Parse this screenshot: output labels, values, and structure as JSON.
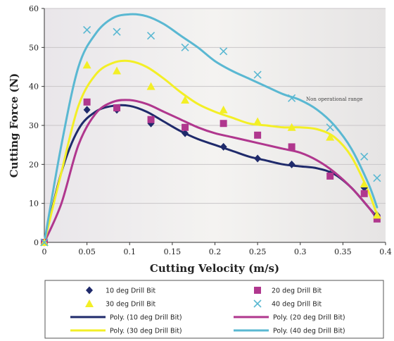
{
  "chart_data": {
    "type": "scatter",
    "title": "",
    "xlabel": "Cutting Velocity (m/s)",
    "ylabel": "Cutting Force (N)",
    "xlim": [
      0,
      0.4
    ],
    "ylim": [
      0,
      60
    ],
    "xticks": [
      "0",
      "0.05",
      "0.1",
      "0.15",
      "0.2",
      "0.25",
      "0.3",
      "0.35",
      "0.4"
    ],
    "yticks": [
      "0",
      "10",
      "20",
      "30",
      "40",
      "50",
      "60"
    ],
    "grid": true,
    "annotation": {
      "text": "Non operational range",
      "x": 0.34,
      "y": 36.3
    },
    "legend_position": "bottom",
    "series": [
      {
        "name": "10 deg Drill Bit",
        "marker": "diamond",
        "color": "#1f2a6b",
        "x": [
          0,
          0.05,
          0.085,
          0.125,
          0.165,
          0.21,
          0.25,
          0.29,
          0.335,
          0.375,
          0.39
        ],
        "y": [
          0,
          34,
          34,
          30.5,
          28,
          24.5,
          21.5,
          20,
          17.5,
          14,
          7
        ]
      },
      {
        "name": "20 deg Drill Bit",
        "marker": "square",
        "color": "#b0378e",
        "x": [
          0,
          0.05,
          0.085,
          0.125,
          0.165,
          0.21,
          0.25,
          0.29,
          0.335,
          0.375,
          0.39
        ],
        "y": [
          0,
          36,
          34.5,
          31.5,
          29.5,
          30.5,
          27.5,
          24.5,
          17,
          12.5,
          6
        ]
      },
      {
        "name": "30 deg Drill Bit",
        "marker": "triangle",
        "color": "#f3ef26",
        "x": [
          0,
          0.05,
          0.085,
          0.125,
          0.165,
          0.21,
          0.25,
          0.29,
          0.335,
          0.375,
          0.39
        ],
        "y": [
          0,
          45.5,
          44,
          40,
          36.5,
          34,
          31,
          29.5,
          27,
          15,
          7
        ]
      },
      {
        "name": "40 deg Drill Bit",
        "marker": "x",
        "color": "#5ab8d2",
        "x": [
          0,
          0.05,
          0.085,
          0.125,
          0.165,
          0.21,
          0.25,
          0.29,
          0.335,
          0.375,
          0.39
        ],
        "y": [
          0,
          54.5,
          54,
          53,
          50,
          49,
          43,
          37,
          29.5,
          22,
          16.5
        ]
      }
    ],
    "trendlines": [
      {
        "name": "Poly. (10 deg Drill Bit)",
        "color": "#1f2a6b",
        "x": [
          0,
          0.02,
          0.04,
          0.06,
          0.08,
          0.1,
          0.12,
          0.14,
          0.16,
          0.18,
          0.2,
          0.22,
          0.24,
          0.26,
          0.28,
          0.3,
          0.32,
          0.34,
          0.36,
          0.38,
          0.39
        ],
        "y": [
          0,
          18,
          29,
          33.5,
          35,
          35,
          33.5,
          31,
          28.5,
          26.5,
          25,
          23.5,
          22,
          21,
          20,
          19.5,
          19,
          17.5,
          14,
          9,
          6.5
        ]
      },
      {
        "name": "Poly. (20 deg Drill Bit)",
        "color": "#b0378e",
        "x": [
          0,
          0.02,
          0.04,
          0.06,
          0.08,
          0.1,
          0.12,
          0.14,
          0.16,
          0.18,
          0.2,
          0.22,
          0.24,
          0.26,
          0.28,
          0.3,
          0.32,
          0.34,
          0.36,
          0.38,
          0.39
        ],
        "y": [
          0,
          10,
          25,
          33,
          36,
          36.5,
          35.5,
          33.5,
          31.5,
          29.5,
          28,
          27,
          26,
          25,
          24,
          23,
          21,
          18,
          14,
          9,
          6
        ]
      },
      {
        "name": "Poly. (30 deg Drill Bit)",
        "color": "#f3ef26",
        "x": [
          0,
          0.02,
          0.04,
          0.06,
          0.08,
          0.1,
          0.12,
          0.14,
          0.16,
          0.18,
          0.2,
          0.22,
          0.24,
          0.26,
          0.28,
          0.3,
          0.32,
          0.34,
          0.36,
          0.38,
          0.39
        ],
        "y": [
          0,
          18,
          35,
          43,
          46,
          46.5,
          45,
          42,
          38.5,
          35.5,
          33.5,
          32,
          30.5,
          30,
          29.5,
          29.5,
          29,
          27,
          22,
          13,
          7
        ]
      },
      {
        "name": "Poly. (40 deg Drill Bit)",
        "color": "#5ab8d2",
        "x": [
          0,
          0.02,
          0.04,
          0.06,
          0.08,
          0.1,
          0.12,
          0.14,
          0.16,
          0.18,
          0.2,
          0.22,
          0.24,
          0.26,
          0.28,
          0.3,
          0.32,
          0.34,
          0.36,
          0.38,
          0.39
        ],
        "y": [
          0,
          25,
          45,
          53.5,
          57.5,
          58.5,
          58,
          56,
          53,
          50,
          46.5,
          44,
          42,
          40,
          38,
          36.5,
          34,
          30,
          24,
          15,
          9
        ]
      }
    ]
  }
}
